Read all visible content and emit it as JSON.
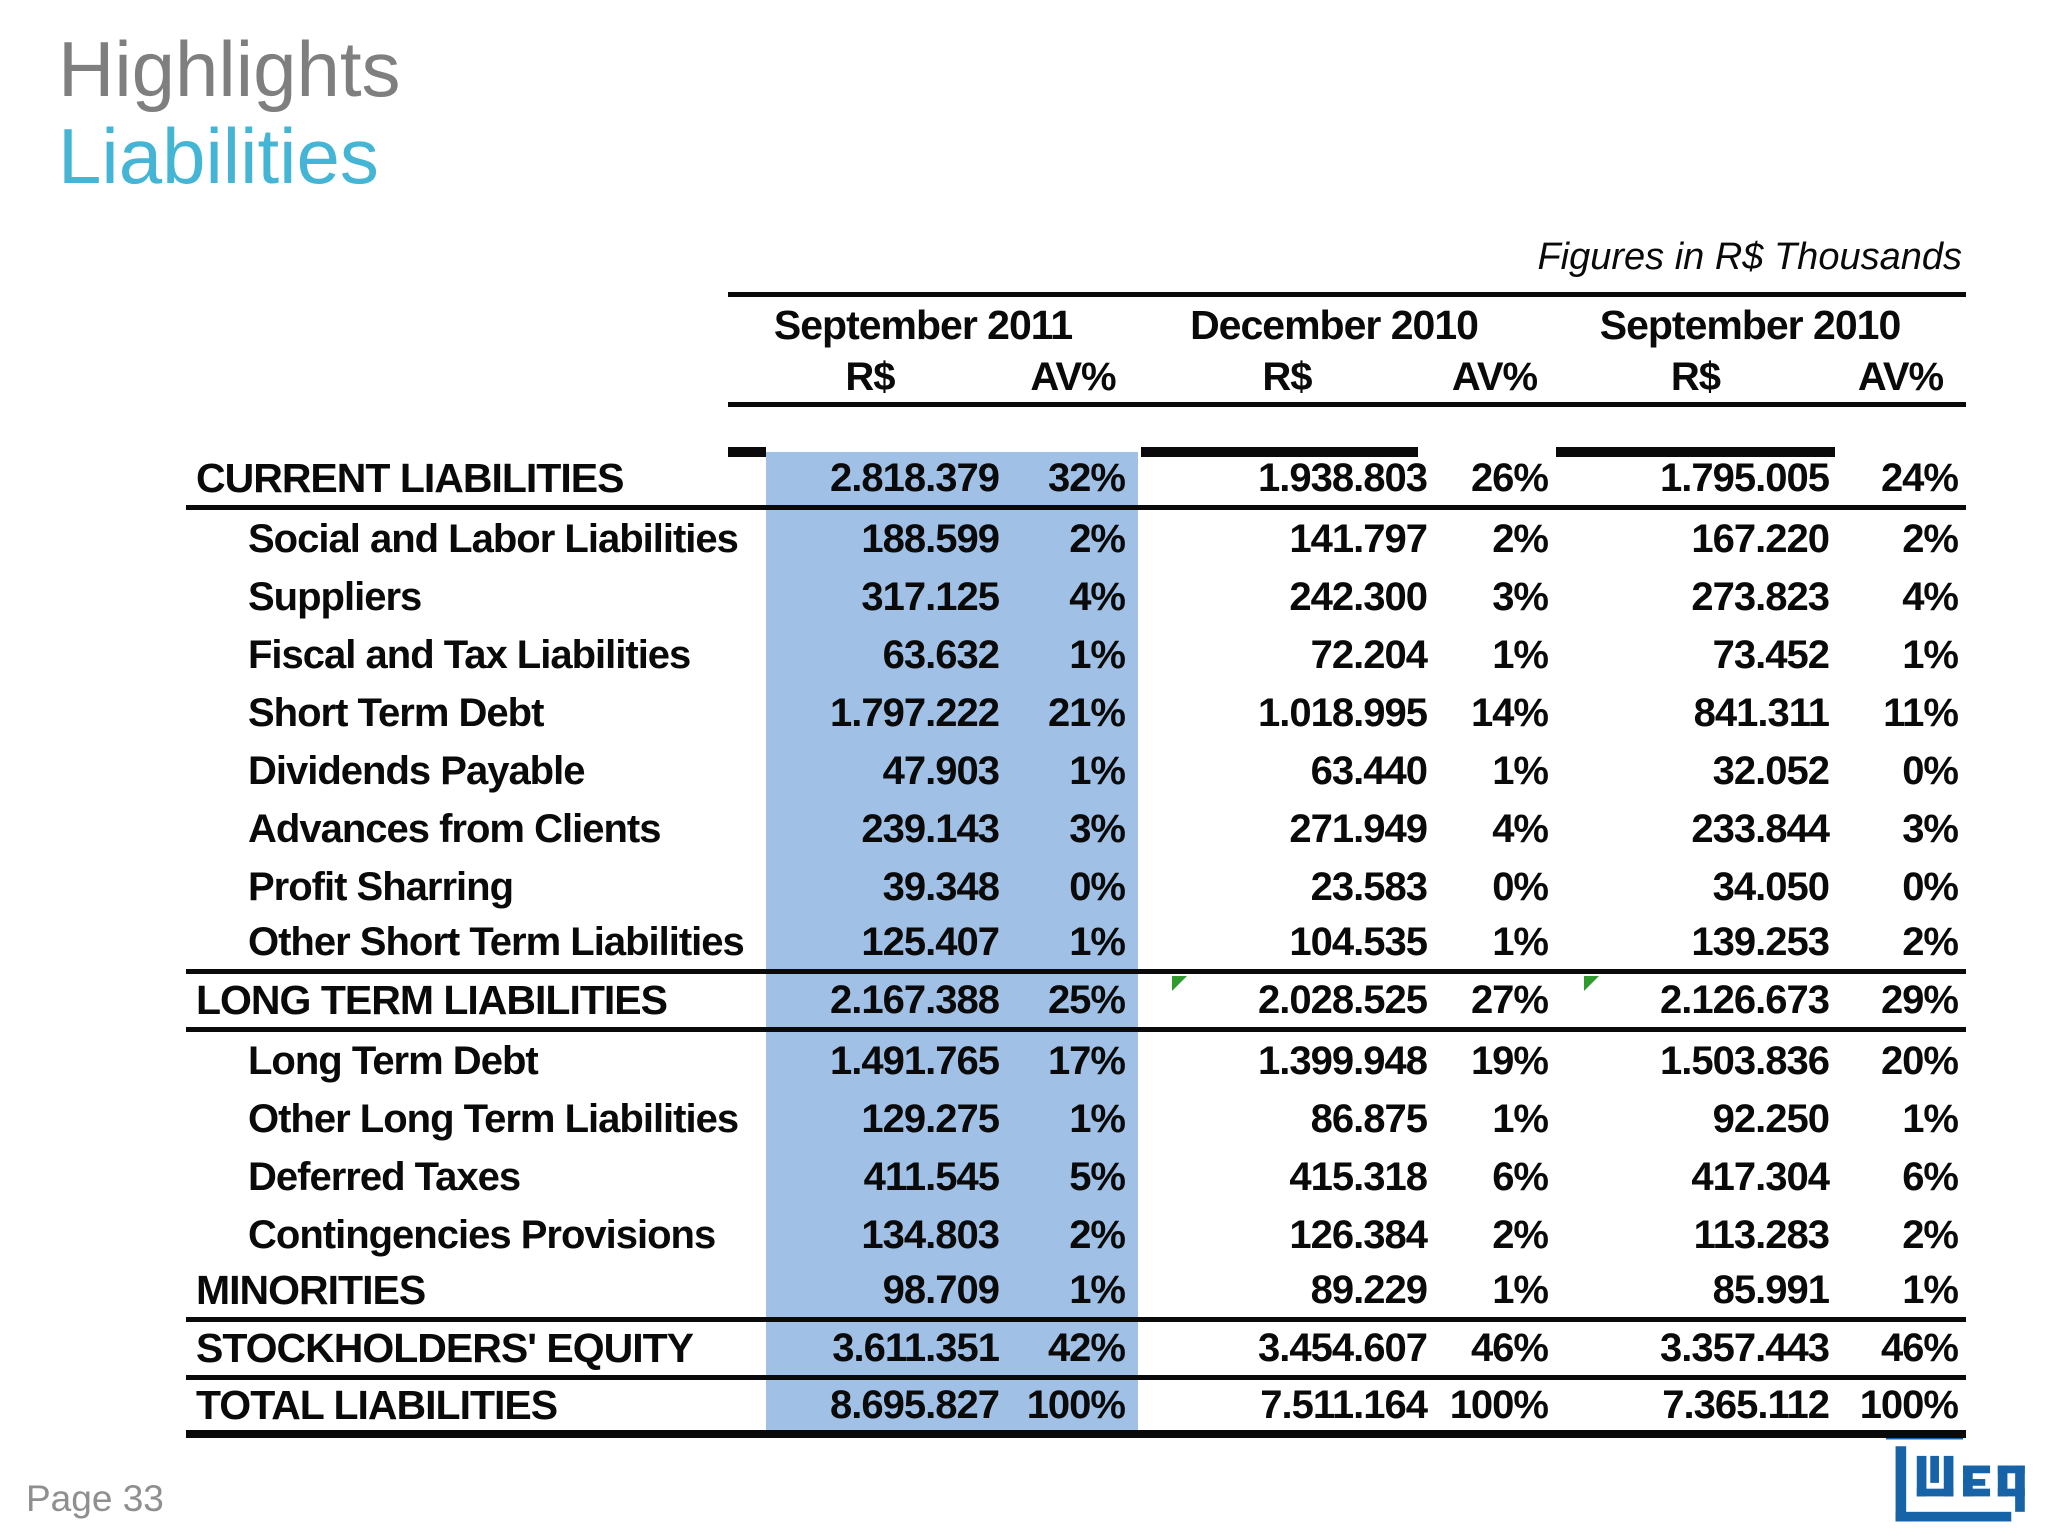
{
  "slide": {
    "title": "Highlights",
    "subtitle": "Liabilities",
    "page_label": "Page 33",
    "logo_text": "WEG"
  },
  "colors": {
    "title_gray": "#7f7f7f",
    "subtitle_cyan": "#45b5d5",
    "highlight_band_blue": "#a0c0e6",
    "logo_blue": "#1763a8",
    "marker_green": "#2f9b2f",
    "text_black": "#0a0a0a",
    "page_num_gray": "#8f8f8f"
  },
  "table": {
    "note": "Figures in R$ Thousands",
    "period_headers": [
      "September 2011",
      "December 2010",
      "September 2010"
    ],
    "value_headers": [
      "R$",
      "AV%"
    ],
    "highlighted_period": "September 2011",
    "rows": [
      {
        "label": "CURRENT LIABILITIES",
        "section": true,
        "values": [
          "2.818.379",
          "32%",
          "1.938.803",
          "26%",
          "1.795.005",
          "24%"
        ]
      },
      {
        "label": "Social and Labor Liabilities",
        "section": false,
        "values": [
          "188.599",
          "2%",
          "141.797",
          "2%",
          "167.220",
          "2%"
        ]
      },
      {
        "label": "Suppliers",
        "section": false,
        "values": [
          "317.125",
          "4%",
          "242.300",
          "3%",
          "273.823",
          "4%"
        ]
      },
      {
        "label": "Fiscal and Tax Liabilities",
        "section": false,
        "values": [
          "63.632",
          "1%",
          "72.204",
          "1%",
          "73.452",
          "1%"
        ]
      },
      {
        "label": "Short Term Debt",
        "section": false,
        "values": [
          "1.797.222",
          "21%",
          "1.018.995",
          "14%",
          "841.311",
          "11%"
        ]
      },
      {
        "label": "Dividends Payable",
        "section": false,
        "values": [
          "47.903",
          "1%",
          "63.440",
          "1%",
          "32.052",
          "0%"
        ]
      },
      {
        "label": "Advances from Clients",
        "section": false,
        "values": [
          "239.143",
          "3%",
          "271.949",
          "4%",
          "233.844",
          "3%"
        ]
      },
      {
        "label": "Profit Sharring",
        "section": false,
        "values": [
          "39.348",
          "0%",
          "23.583",
          "0%",
          "34.050",
          "0%"
        ]
      },
      {
        "label": "Other Short Term Liabilities",
        "section": false,
        "values": [
          "125.407",
          "1%",
          "104.535",
          "1%",
          "139.253",
          "2%"
        ]
      },
      {
        "label": "LONG TERM LIABILITIES",
        "section": true,
        "values": [
          "2.167.388",
          "25%",
          "2.028.525",
          "27%",
          "2.126.673",
          "29%"
        ]
      },
      {
        "label": "Long Term Debt",
        "section": false,
        "values": [
          "1.491.765",
          "17%",
          "1.399.948",
          "19%",
          "1.503.836",
          "20%"
        ]
      },
      {
        "label": "Other Long Term Liabilities",
        "section": false,
        "values": [
          "129.275",
          "1%",
          "86.875",
          "1%",
          "92.250",
          "1%"
        ]
      },
      {
        "label": "Deferred Taxes",
        "section": false,
        "values": [
          "411.545",
          "5%",
          "415.318",
          "6%",
          "417.304",
          "6%"
        ]
      },
      {
        "label": "Contingencies Provisions",
        "section": false,
        "values": [
          "134.803",
          "2%",
          "126.384",
          "2%",
          "113.283",
          "2%"
        ]
      },
      {
        "label": "MINORITIES",
        "section": true,
        "values": [
          "98.709",
          "1%",
          "89.229",
          "1%",
          "85.991",
          "1%"
        ]
      },
      {
        "label": "STOCKHOLDERS' EQUITY",
        "section": true,
        "values": [
          "3.611.351",
          "42%",
          "3.454.607",
          "46%",
          "3.357.443",
          "46%"
        ]
      },
      {
        "label": "TOTAL LIABILITIES",
        "section": true,
        "values": [
          "8.695.827",
          "100%",
          "7.511.164",
          "100%",
          "7.365.112",
          "100%"
        ]
      }
    ]
  }
}
